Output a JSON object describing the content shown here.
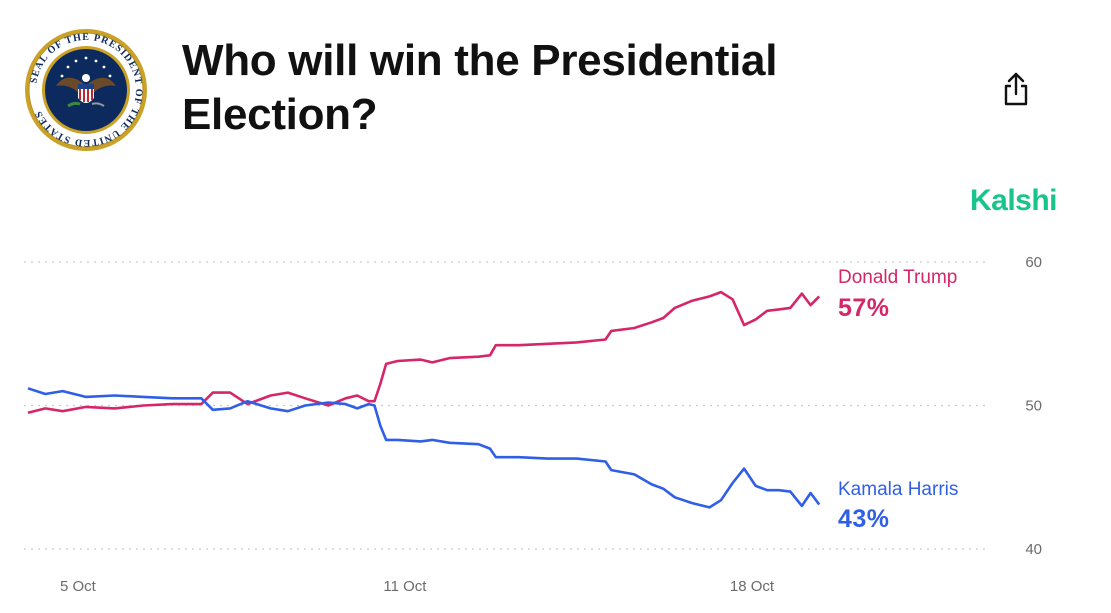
{
  "header": {
    "title": "Who will win the Presidential Election?",
    "seal_text": "SEAL OF THE PRESIDENT OF THE UNITED STATES",
    "share_icon": "share-icon"
  },
  "brand": {
    "name": "Kalshi",
    "color": "#17c48a"
  },
  "chart_data": {
    "type": "line",
    "title": "",
    "ylim": [
      40,
      60
    ],
    "yticks": [
      "60",
      "50",
      "40"
    ],
    "xticks": [
      "5 Oct",
      "11 Oct",
      "18 Oct"
    ],
    "grid": true,
    "series": [
      {
        "name": "Donald Trump",
        "label": "57%",
        "color": "#d6266a",
        "points": [
          [
            0,
            49.5
          ],
          [
            0.3,
            49.8
          ],
          [
            0.6,
            49.6
          ],
          [
            1,
            49.9
          ],
          [
            1.5,
            49.8
          ],
          [
            2,
            50.0
          ],
          [
            2.5,
            50.1
          ],
          [
            3,
            50.1
          ],
          [
            3.2,
            50.9
          ],
          [
            3.5,
            50.9
          ],
          [
            3.8,
            50.1
          ],
          [
            4.2,
            50.7
          ],
          [
            4.5,
            50.9
          ],
          [
            4.8,
            50.5
          ],
          [
            5.2,
            50.0
          ],
          [
            5.5,
            50.5
          ],
          [
            5.7,
            50.7
          ],
          [
            5.9,
            50.3
          ],
          [
            6.0,
            50.3
          ],
          [
            6.1,
            51.5
          ],
          [
            6.2,
            52.9
          ],
          [
            6.4,
            53.1
          ],
          [
            6.8,
            53.2
          ],
          [
            7.0,
            53.0
          ],
          [
            7.3,
            53.3
          ],
          [
            7.8,
            53.4
          ],
          [
            8.0,
            53.5
          ],
          [
            8.1,
            54.2
          ],
          [
            8.5,
            54.2
          ],
          [
            9.0,
            54.3
          ],
          [
            9.5,
            54.4
          ],
          [
            10.0,
            54.6
          ],
          [
            10.1,
            55.2
          ],
          [
            10.5,
            55.4
          ],
          [
            10.8,
            55.8
          ],
          [
            11.0,
            56.1
          ],
          [
            11.2,
            56.8
          ],
          [
            11.5,
            57.3
          ],
          [
            11.8,
            57.6
          ],
          [
            12.0,
            57.9
          ],
          [
            12.2,
            57.4
          ],
          [
            12.4,
            55.6
          ],
          [
            12.6,
            56.0
          ],
          [
            12.8,
            56.6
          ],
          [
            13.0,
            56.7
          ],
          [
            13.2,
            56.8
          ],
          [
            13.4,
            57.8
          ],
          [
            13.55,
            57.0
          ],
          [
            13.7,
            57.6
          ]
        ]
      },
      {
        "name": "Kamala Harris",
        "label": "43%",
        "color": "#2f5fe6",
        "points": [
          [
            0,
            51.2
          ],
          [
            0.3,
            50.8
          ],
          [
            0.6,
            51.0
          ],
          [
            1,
            50.6
          ],
          [
            1.5,
            50.7
          ],
          [
            2,
            50.6
          ],
          [
            2.5,
            50.5
          ],
          [
            3,
            50.5
          ],
          [
            3.2,
            49.7
          ],
          [
            3.5,
            49.8
          ],
          [
            3.8,
            50.3
          ],
          [
            4.2,
            49.8
          ],
          [
            4.5,
            49.6
          ],
          [
            4.8,
            50.0
          ],
          [
            5.2,
            50.2
          ],
          [
            5.5,
            50.1
          ],
          [
            5.7,
            49.8
          ],
          [
            5.9,
            50.1
          ],
          [
            6.0,
            50.0
          ],
          [
            6.1,
            48.6
          ],
          [
            6.2,
            47.6
          ],
          [
            6.4,
            47.6
          ],
          [
            6.8,
            47.5
          ],
          [
            7.0,
            47.6
          ],
          [
            7.3,
            47.4
          ],
          [
            7.8,
            47.3
          ],
          [
            8.0,
            47.0
          ],
          [
            8.1,
            46.4
          ],
          [
            8.5,
            46.4
          ],
          [
            9.0,
            46.3
          ],
          [
            9.5,
            46.3
          ],
          [
            10.0,
            46.1
          ],
          [
            10.1,
            45.5
          ],
          [
            10.5,
            45.2
          ],
          [
            10.8,
            44.5
          ],
          [
            11.0,
            44.2
          ],
          [
            11.2,
            43.6
          ],
          [
            11.5,
            43.2
          ],
          [
            11.8,
            42.9
          ],
          [
            12.0,
            43.4
          ],
          [
            12.2,
            44.6
          ],
          [
            12.4,
            45.6
          ],
          [
            12.6,
            44.4
          ],
          [
            12.8,
            44.1
          ],
          [
            13.0,
            44.1
          ],
          [
            13.2,
            44.0
          ],
          [
            13.4,
            43.0
          ],
          [
            13.55,
            43.9
          ],
          [
            13.7,
            43.1
          ]
        ]
      }
    ]
  }
}
